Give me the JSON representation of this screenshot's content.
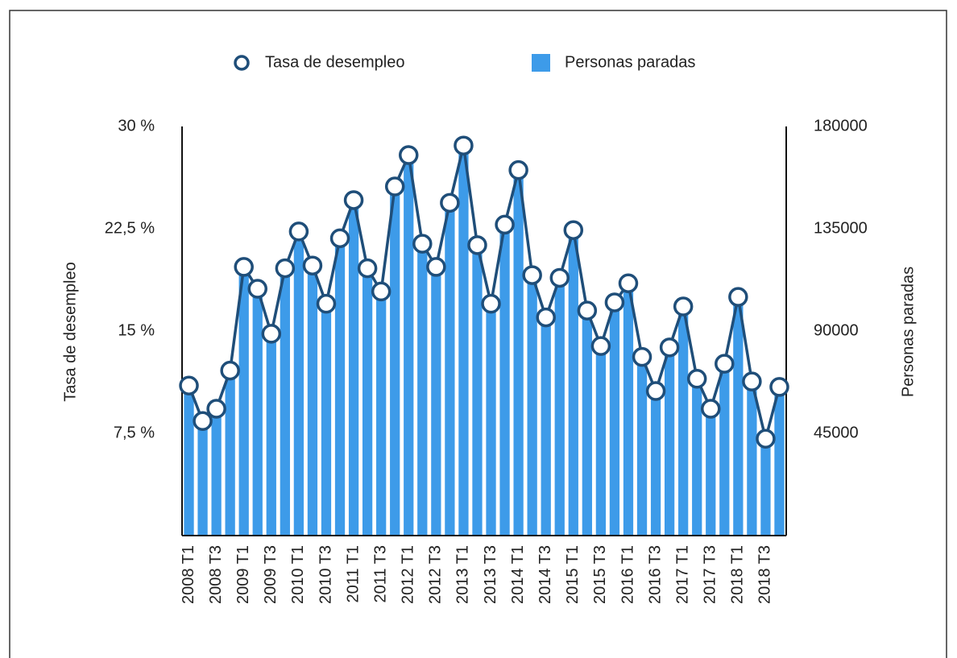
{
  "chart_data": {
    "type": "bar",
    "categories": [
      "2008 T1",
      null,
      "2008 T3",
      null,
      "2009 T1",
      null,
      "2009 T3",
      null,
      "2010 T1",
      null,
      "2010 T3",
      null,
      "2011 T1",
      null,
      "2011 T3",
      null,
      "2012 T1",
      null,
      "2012 T3",
      null,
      "2013 T1",
      null,
      "2013 T3",
      null,
      "2014 T1",
      null,
      "2014 T3",
      null,
      "2015 T1",
      null,
      "2015 T3",
      null,
      "2016 T1",
      null,
      "2016 T3",
      null,
      "2017 T1",
      null,
      "2017 T3",
      null,
      "2018 T1",
      null,
      "2018 T3",
      null
    ],
    "series": [
      {
        "name": "Tasa de desempleo",
        "type": "line",
        "axis": "y",
        "color": "#1f4e79",
        "values": [
          11.0,
          8.4,
          9.3,
          12.1,
          19.7,
          18.1,
          14.8,
          19.6,
          22.3,
          19.8,
          17.0,
          21.8,
          24.6,
          19.6,
          17.9,
          25.6,
          27.9,
          21.4,
          19.7,
          24.4,
          28.6,
          21.3,
          17.0,
          22.8,
          26.8,
          19.1,
          16.0,
          18.9,
          22.4,
          16.5,
          13.9,
          17.1,
          18.5,
          13.1,
          10.6,
          13.8,
          16.8,
          11.5,
          9.3,
          12.6,
          17.5,
          11.3,
          7.1,
          10.9
        ]
      },
      {
        "name": "Personas paradas",
        "type": "bar",
        "axis": "y2",
        "color": "#3d9be9",
        "values": [
          66000,
          50400,
          55800,
          72600,
          118200,
          108600,
          88800,
          117600,
          133800,
          118800,
          102000,
          130800,
          147600,
          117600,
          107400,
          153600,
          167400,
          128400,
          118200,
          146400,
          171600,
          127800,
          102000,
          136800,
          160800,
          114600,
          96000,
          113400,
          134400,
          99000,
          83400,
          102600,
          111000,
          78600,
          63600,
          82800,
          100800,
          69000,
          55800,
          75600,
          105000,
          67800,
          42600,
          65400
        ]
      }
    ],
    "y_label": "Tasa de desempleo",
    "y2_label": "Personas paradas",
    "ylim": [
      0,
      30
    ],
    "yticks": [
      {
        "value": 7.5,
        "label": "7,5 %"
      },
      {
        "value": 15,
        "label": "15 %"
      },
      {
        "value": 22.5,
        "label": "22,5 %"
      },
      {
        "value": 30,
        "label": "30 %"
      }
    ],
    "y2lim": [
      0,
      180000
    ],
    "y2ticks": [
      45000,
      90000,
      135000,
      180000
    ],
    "grid": false,
    "legend": "top"
  }
}
